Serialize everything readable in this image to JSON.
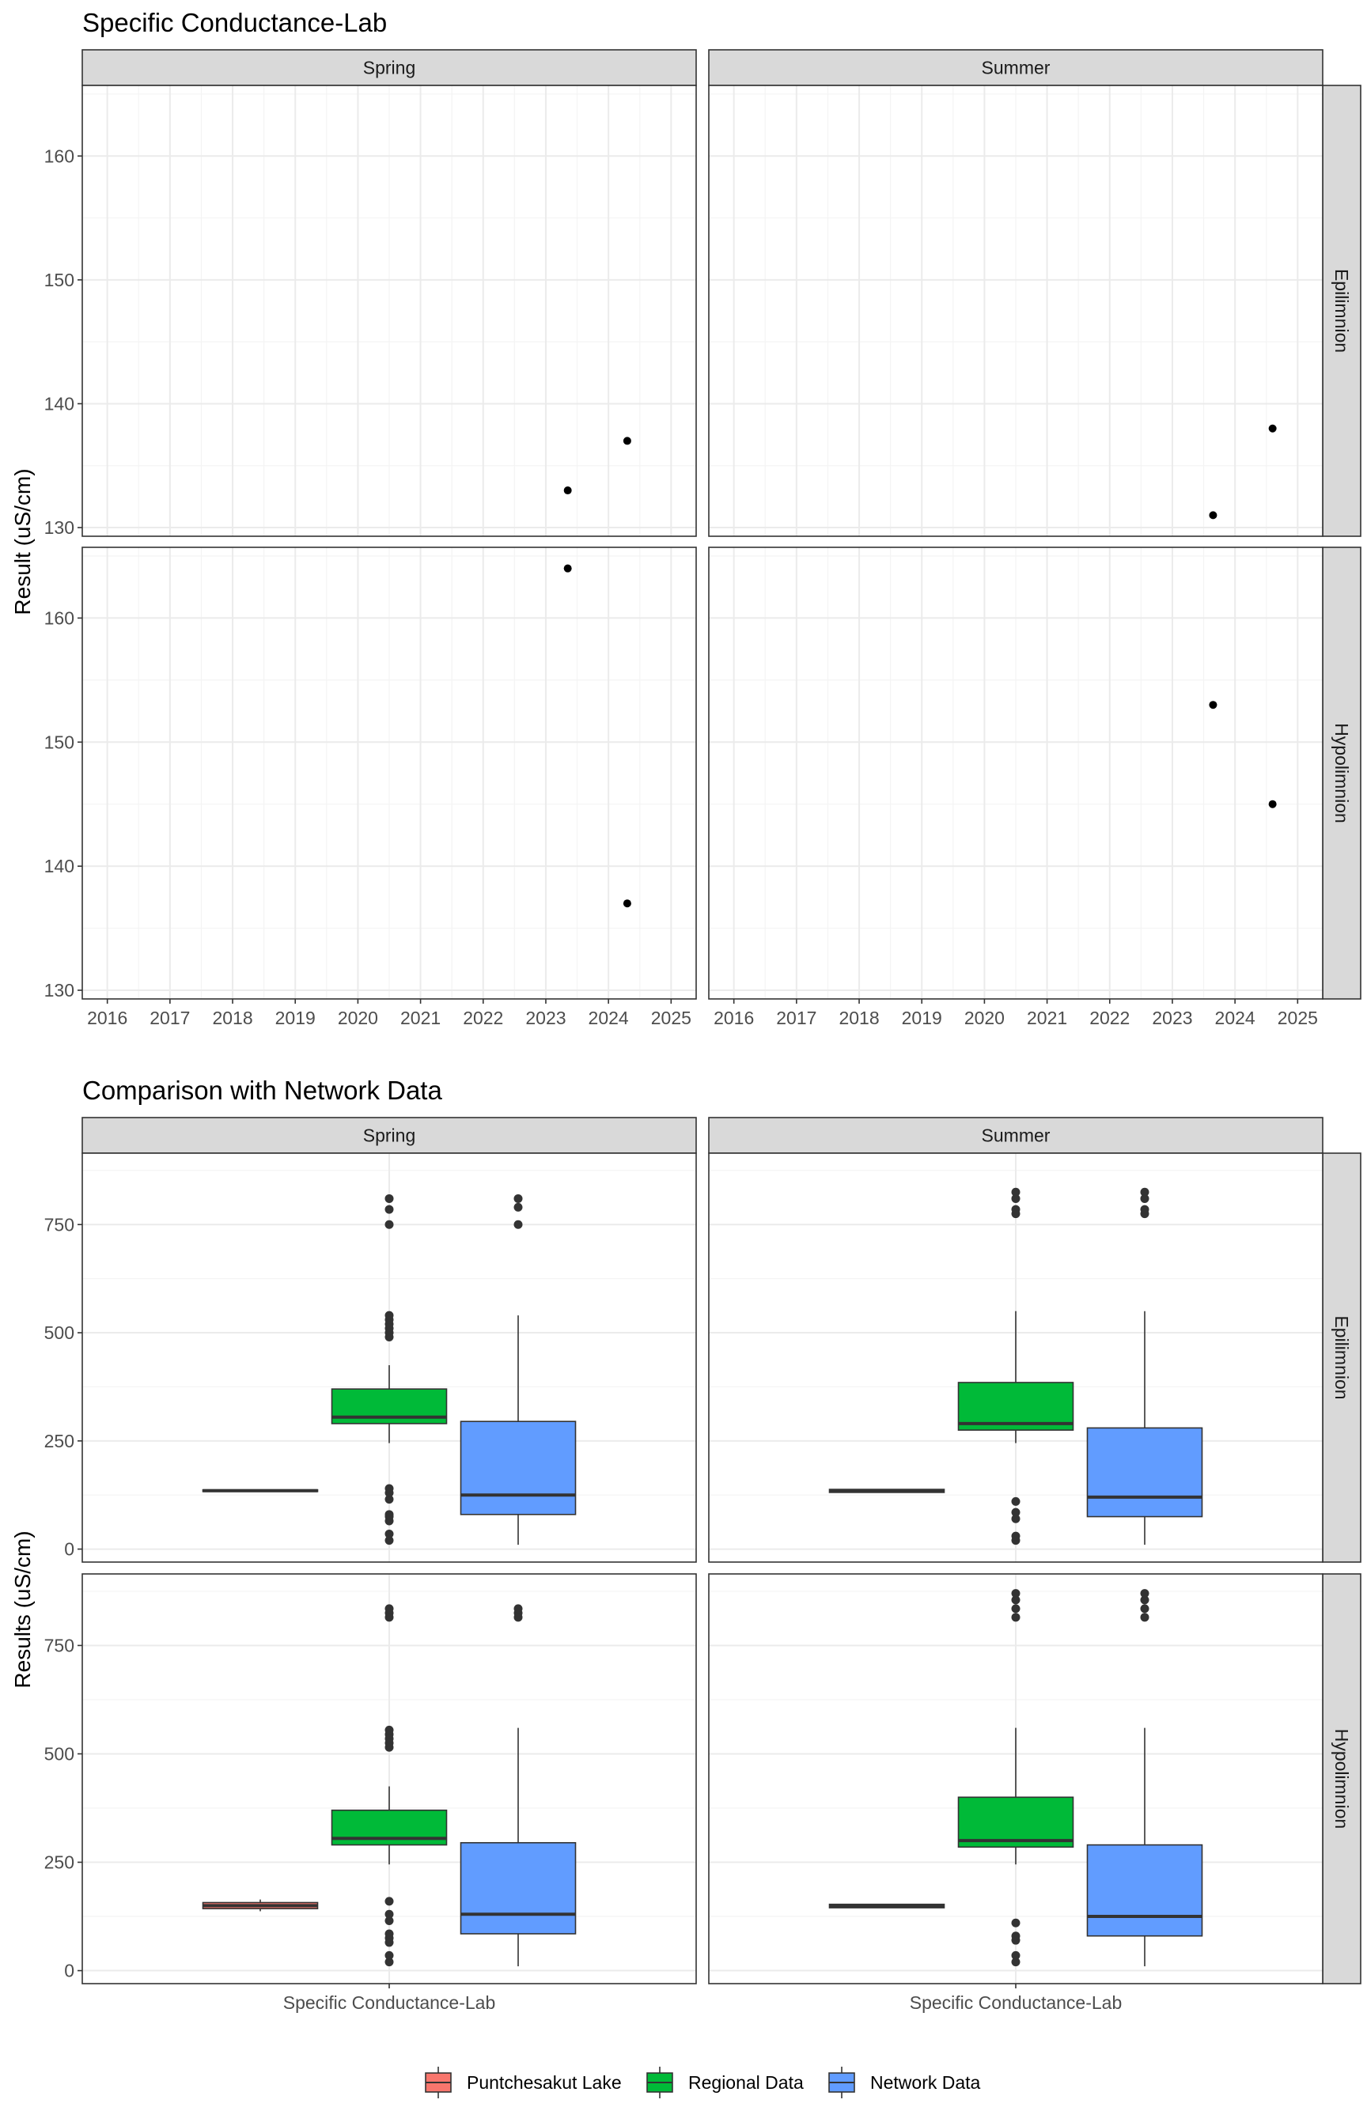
{
  "colors": {
    "strip_bg": "#d9d9d9",
    "panel_border": "#333333",
    "grid_major": "#ebebeb",
    "grid_minor": "#f4f4f4",
    "point": "#000000",
    "puntchesakut": "#f8766d",
    "regional": "#00ba38",
    "network": "#619cff",
    "median": "#333333"
  },
  "legend": {
    "items": [
      {
        "label": "Puntchesakut Lake",
        "color": "#f8766d"
      },
      {
        "label": "Regional Data",
        "color": "#00ba38"
      },
      {
        "label": "Network Data",
        "color": "#619cff"
      }
    ]
  },
  "chart_data": [
    {
      "type": "scatter",
      "title": "Specific Conductance-Lab",
      "ylabel": "Result (uS/cm)",
      "xlabel": "",
      "facet_columns": [
        "Spring",
        "Summer"
      ],
      "facet_rows": [
        "Epilimnion",
        "Hypolimnion"
      ],
      "x_ticks": [
        "2016",
        "2017",
        "2018",
        "2019",
        "2020",
        "2021",
        "2022",
        "2023",
        "2024",
        "2025"
      ],
      "xlim": [
        2015.6,
        2025.4
      ],
      "y_ticks": [
        130,
        140,
        150,
        160
      ],
      "ylim": [
        129.3,
        165.7
      ],
      "grid": true,
      "panels": [
        {
          "column": "Spring",
          "row": "Epilimnion",
          "points": [
            {
              "x": 2023.35,
              "y": 133
            },
            {
              "x": 2024.3,
              "y": 137
            }
          ]
        },
        {
          "column": "Summer",
          "row": "Epilimnion",
          "points": [
            {
              "x": 2023.65,
              "y": 131
            },
            {
              "x": 2024.6,
              "y": 138
            }
          ]
        },
        {
          "column": "Spring",
          "row": "Hypolimnion",
          "points": [
            {
              "x": 2023.35,
              "y": 164
            },
            {
              "x": 2024.3,
              "y": 137
            }
          ]
        },
        {
          "column": "Summer",
          "row": "Hypolimnion",
          "points": [
            {
              "x": 2023.65,
              "y": 153
            },
            {
              "x": 2024.6,
              "y": 145
            }
          ]
        }
      ]
    },
    {
      "type": "box",
      "title": "Comparison with Network Data",
      "ylabel": "Results (uS/cm)",
      "x_category": "Specific Conductance-Lab",
      "facet_columns": [
        "Spring",
        "Summer"
      ],
      "facet_rows": [
        "Epilimnion",
        "Hypolimnion"
      ],
      "y_ticks": [
        0,
        250,
        500,
        750
      ],
      "ylim": [
        -30,
        915
      ],
      "grid": true,
      "legend_position": "bottom",
      "series_order": [
        "Puntchesakut Lake",
        "Regional Data",
        "Network Data"
      ],
      "panels": [
        {
          "column": "Spring",
          "row": "Epilimnion",
          "boxes": [
            {
              "series": "Puntchesakut Lake",
              "min": 133,
              "q1": 133,
              "median": 135,
              "q3": 137,
              "max": 137,
              "outliers": []
            },
            {
              "series": "Regional Data",
              "min": 245,
              "q1": 290,
              "median": 305,
              "q3": 370,
              "max": 425,
              "outliers": [
                20,
                35,
                65,
                75,
                80,
                115,
                130,
                140,
                490,
                500,
                510,
                520,
                530,
                540,
                750,
                785,
                810
              ]
            },
            {
              "series": "Network Data",
              "min": 10,
              "q1": 80,
              "median": 125,
              "q3": 295,
              "max": 540,
              "outliers": [
                750,
                790,
                810
              ]
            }
          ]
        },
        {
          "column": "Summer",
          "row": "Epilimnion",
          "boxes": [
            {
              "series": "Puntchesakut Lake",
              "min": 131,
              "q1": 131,
              "median": 134,
              "q3": 138,
              "max": 138,
              "outliers": []
            },
            {
              "series": "Regional Data",
              "min": 245,
              "q1": 275,
              "median": 290,
              "q3": 385,
              "max": 550,
              "outliers": [
                20,
                30,
                70,
                85,
                110,
                775,
                785,
                810,
                825
              ]
            },
            {
              "series": "Network Data",
              "min": 10,
              "q1": 75,
              "median": 120,
              "q3": 280,
              "max": 550,
              "outliers": [
                775,
                785,
                810,
                825
              ]
            }
          ]
        },
        {
          "column": "Spring",
          "row": "Hypolimnion",
          "boxes": [
            {
              "series": "Puntchesakut Lake",
              "min": 137,
              "q1": 143,
              "median": 150,
              "q3": 157,
              "max": 164,
              "outliers": []
            },
            {
              "series": "Regional Data",
              "min": 245,
              "q1": 290,
              "median": 305,
              "q3": 370,
              "max": 425,
              "outliers": [
                20,
                35,
                65,
                75,
                85,
                115,
                130,
                160,
                515,
                525,
                535,
                545,
                555,
                815,
                825,
                835
              ]
            },
            {
              "series": "Network Data",
              "min": 10,
              "q1": 85,
              "median": 130,
              "q3": 295,
              "max": 560,
              "outliers": [
                815,
                825,
                835
              ]
            }
          ]
        },
        {
          "column": "Summer",
          "row": "Hypolimnion",
          "boxes": [
            {
              "series": "Puntchesakut Lake",
              "min": 145,
              "q1": 145,
              "median": 149,
              "q3": 153,
              "max": 153,
              "outliers": []
            },
            {
              "series": "Regional Data",
              "min": 245,
              "q1": 285,
              "median": 300,
              "q3": 400,
              "max": 560,
              "outliers": [
                20,
                35,
                70,
                80,
                110,
                815,
                835,
                855,
                870
              ]
            },
            {
              "series": "Network Data",
              "min": 10,
              "q1": 80,
              "median": 125,
              "q3": 290,
              "max": 560,
              "outliers": [
                815,
                835,
                855,
                870
              ]
            }
          ]
        }
      ]
    }
  ]
}
